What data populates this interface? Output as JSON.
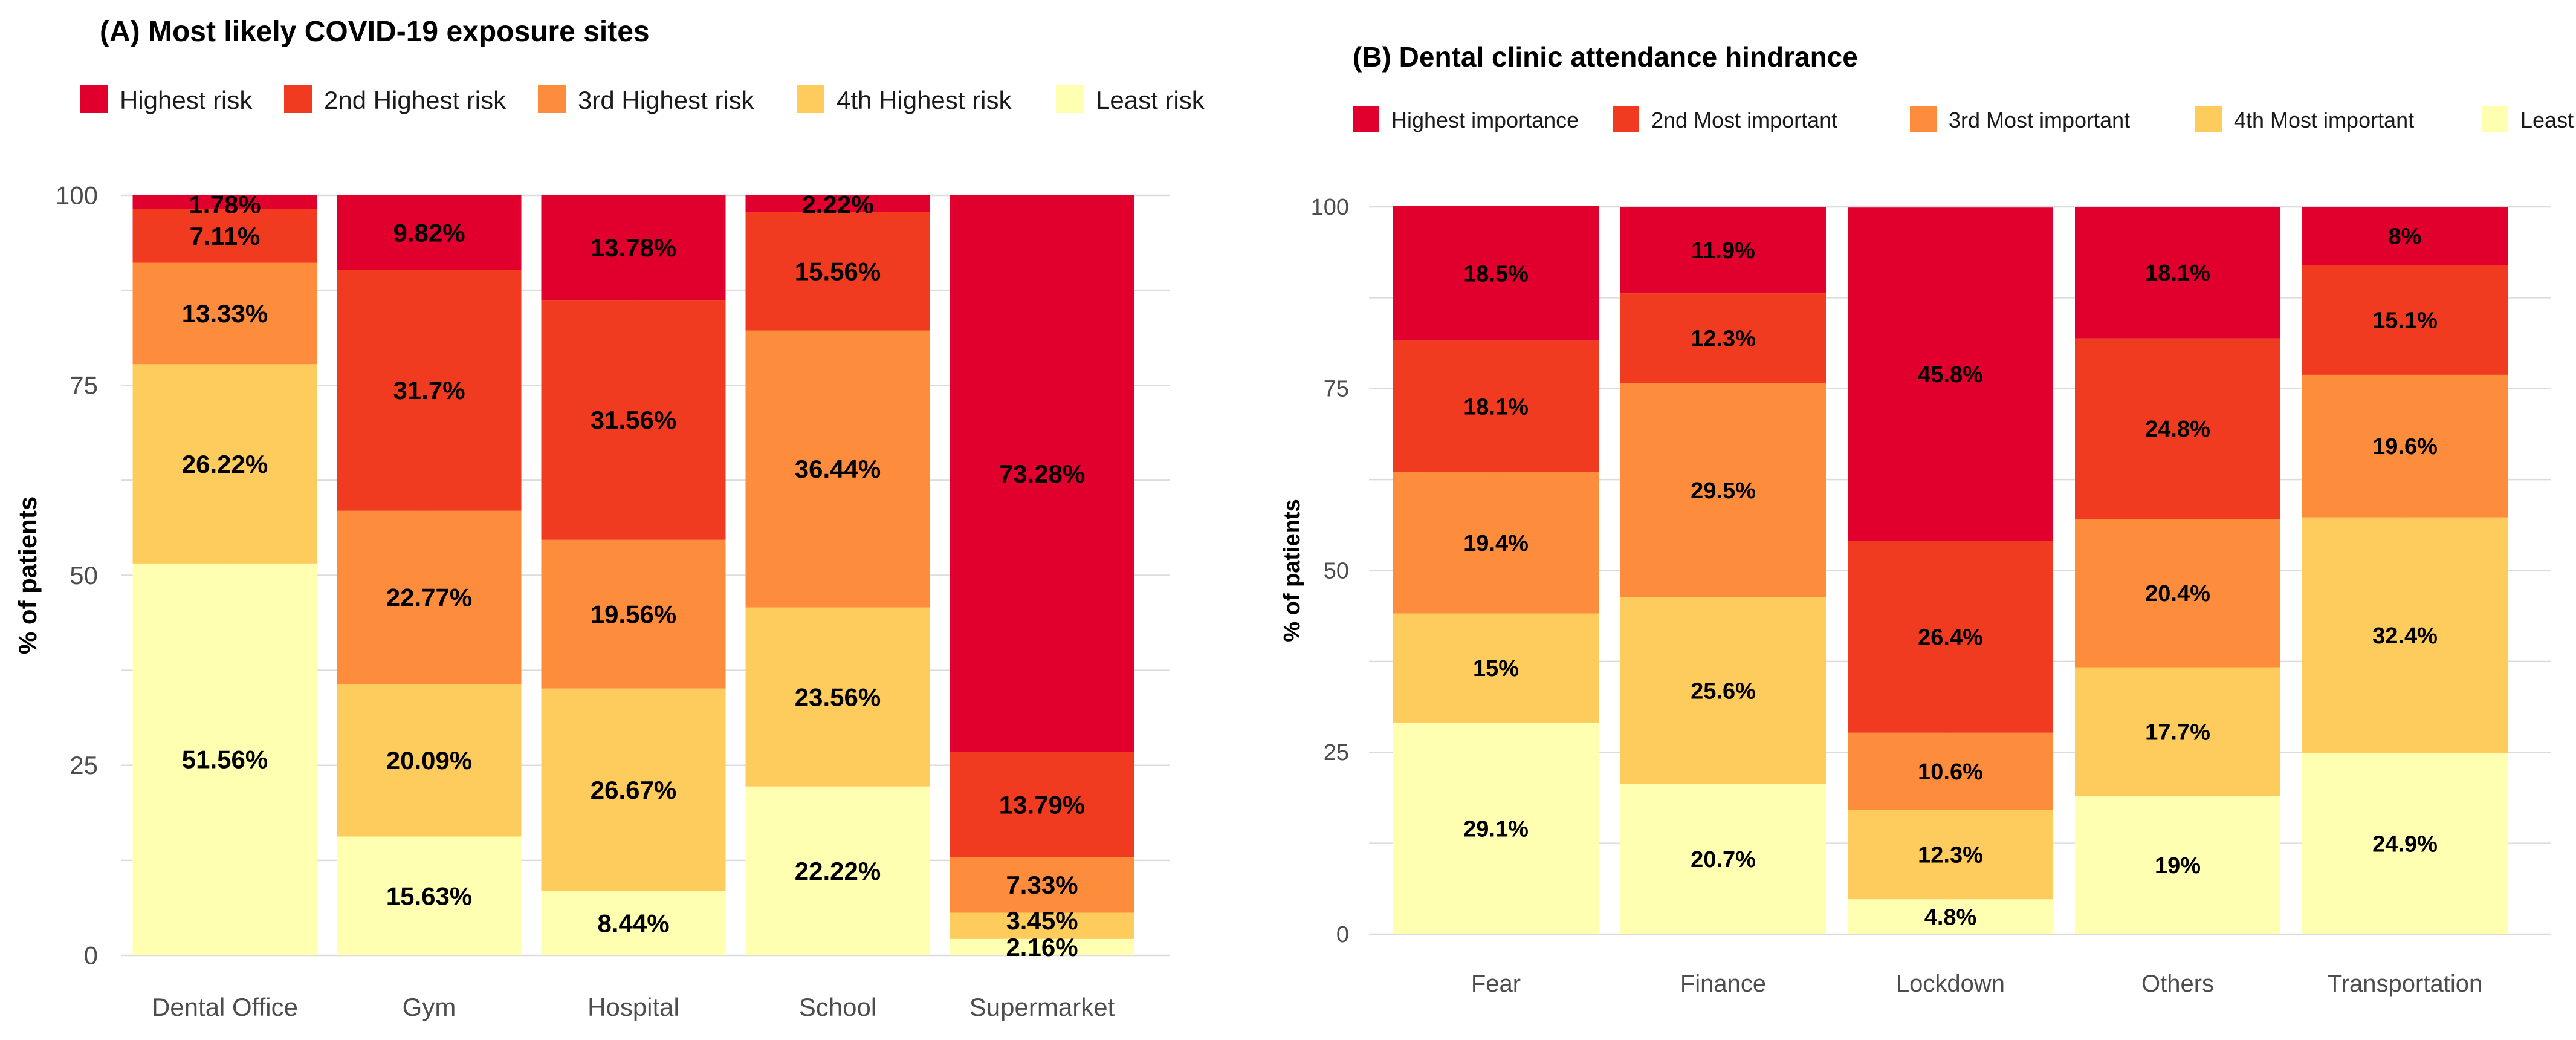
{
  "chart_data": [
    {
      "type": "bar",
      "stacked": true,
      "title": "(A) Most likely COVID-19 exposure sites",
      "xlabel": "",
      "ylabel": "% of patients",
      "ylim": [
        0,
        100
      ],
      "yticks": [
        "0",
        "25",
        "50",
        "75",
        "100"
      ],
      "categories": [
        "Dental Office",
        "Gym",
        "Hospital",
        "School",
        "Supermarket"
      ],
      "series": [
        {
          "name": "Least risk",
          "color": "#FFFFB2",
          "values": [
            51.56,
            15.63,
            8.44,
            22.22,
            2.16
          ],
          "labels": [
            "51.56%",
            "15.63%",
            "8.44%",
            "22.22%",
            "2.16%"
          ]
        },
        {
          "name": "4th Highest risk",
          "color": "#FECC5C",
          "values": [
            26.22,
            20.09,
            26.67,
            23.56,
            3.45
          ],
          "labels": [
            "26.22%",
            "20.09%",
            "26.67%",
            "23.56%",
            "3.45%"
          ]
        },
        {
          "name": "3rd Highest risk",
          "color": "#FD8D3C",
          "values": [
            13.33,
            22.77,
            19.56,
            36.44,
            7.33
          ],
          "labels": [
            "13.33%",
            "22.77%",
            "19.56%",
            "36.44%",
            "7.33%"
          ]
        },
        {
          "name": "2nd Highest risk",
          "color": "#F03B20",
          "values": [
            7.11,
            31.7,
            31.56,
            15.56,
            13.79
          ],
          "labels": [
            "7.11%",
            "31.7%",
            "31.56%",
            "15.56%",
            "13.79%"
          ]
        },
        {
          "name": "Highest risk",
          "color": "#E1002D",
          "values": [
            1.78,
            9.82,
            13.78,
            2.22,
            73.28
          ],
          "labels": [
            "1.78%",
            "9.82%",
            "13.78%",
            "2.22%",
            "73.28%"
          ]
        }
      ],
      "legend_order": [
        "Highest risk",
        "2nd Highest risk",
        "3rd Highest risk",
        "4th Highest risk",
        "Least risk"
      ],
      "legend_position": "top",
      "grid": true
    },
    {
      "type": "bar",
      "stacked": true,
      "title": "(B) Dental clinic attendance hindrance",
      "xlabel": "",
      "ylabel": "% of patients",
      "ylim": [
        0,
        100
      ],
      "yticks": [
        "0",
        "25",
        "50",
        "75",
        "100"
      ],
      "categories": [
        "Fear",
        "Finance",
        "Lockdown",
        "Others",
        "Transportation"
      ],
      "series": [
        {
          "name": "Least important",
          "color": "#FFFFB2",
          "values": [
            29.1,
            20.7,
            4.8,
            19,
            24.9
          ],
          "labels": [
            "29.1%",
            "20.7%",
            "4.8%",
            "19%",
            "24.9%"
          ]
        },
        {
          "name": "4th Most important",
          "color": "#FECC5C",
          "values": [
            15,
            25.6,
            12.3,
            17.7,
            32.4
          ],
          "labels": [
            "15%",
            "25.6%",
            "12.3%",
            "17.7%",
            "32.4%"
          ]
        },
        {
          "name": "3rd Most important",
          "color": "#FD8D3C",
          "values": [
            19.4,
            29.5,
            10.6,
            20.4,
            19.6
          ],
          "labels": [
            "19.4%",
            "29.5%",
            "10.6%",
            "20.4%",
            "19.6%"
          ]
        },
        {
          "name": "2nd Most important",
          "color": "#F03B20",
          "values": [
            18.1,
            12.3,
            26.4,
            24.8,
            15.1
          ],
          "labels": [
            "18.1%",
            "12.3%",
            "26.4%",
            "24.8%",
            "15.1%"
          ]
        },
        {
          "name": "Highest importance",
          "color": "#E1002D",
          "values": [
            18.5,
            11.9,
            45.8,
            18.1,
            8
          ],
          "labels": [
            "18.5%",
            "11.9%",
            "45.8%",
            "18.1%",
            "8%"
          ]
        }
      ],
      "legend_order": [
        "Highest importance",
        "2nd Most important",
        "3rd Most important",
        "4th Most important",
        "Least important"
      ],
      "legend_position": "top",
      "grid": true
    }
  ]
}
